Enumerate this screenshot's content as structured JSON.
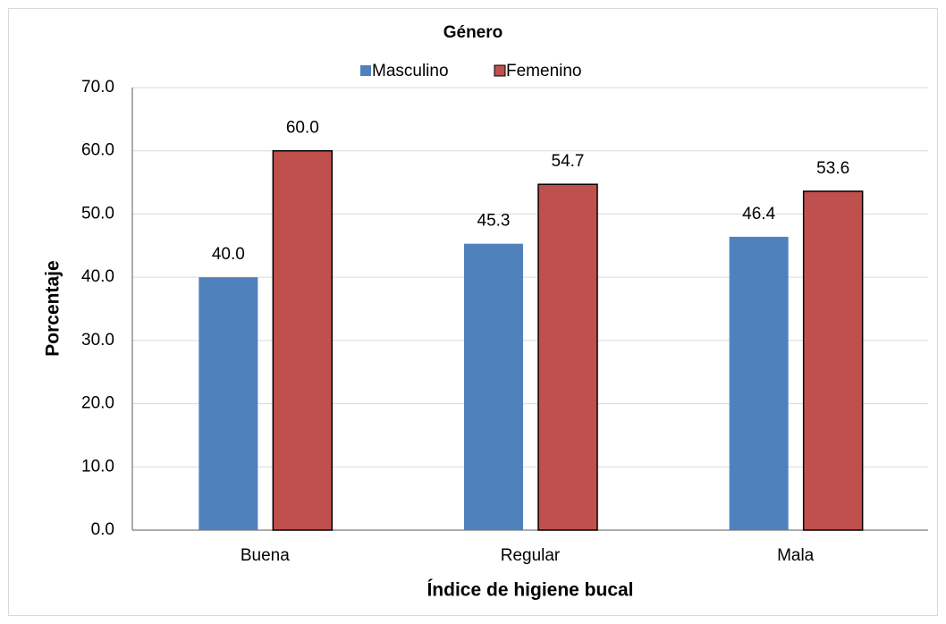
{
  "chart_data": {
    "type": "bar",
    "title": "Género",
    "x_label": "Índice de higiene bucal",
    "y_label": "Porcentaje",
    "categories": [
      "Buena",
      "Regular",
      "Mala"
    ],
    "series": [
      {
        "name": "Masculino",
        "color": "#4f81bd",
        "values": [
          40.0,
          45.3,
          46.4
        ],
        "value_labels": [
          "40.0",
          "45.3",
          "46.4"
        ]
      },
      {
        "name": "Femenino",
        "color": "#c0504d",
        "values": [
          60.0,
          54.7,
          53.6
        ],
        "value_labels": [
          "60.0",
          "54.7",
          "53.6"
        ]
      }
    ],
    "ylim": [
      0,
      70
    ],
    "yticks": [
      {
        "value": 0,
        "label": "0.0"
      },
      {
        "value": 10,
        "label": "10.0"
      },
      {
        "value": 20,
        "label": "20.0"
      },
      {
        "value": 30,
        "label": "30.0"
      },
      {
        "value": 40,
        "label": "40.0"
      },
      {
        "value": 50,
        "label": "50.0"
      },
      {
        "value": 60,
        "label": "60.0"
      },
      {
        "value": 70,
        "label": "70.0"
      }
    ],
    "grid": true,
    "legend": "top"
  }
}
